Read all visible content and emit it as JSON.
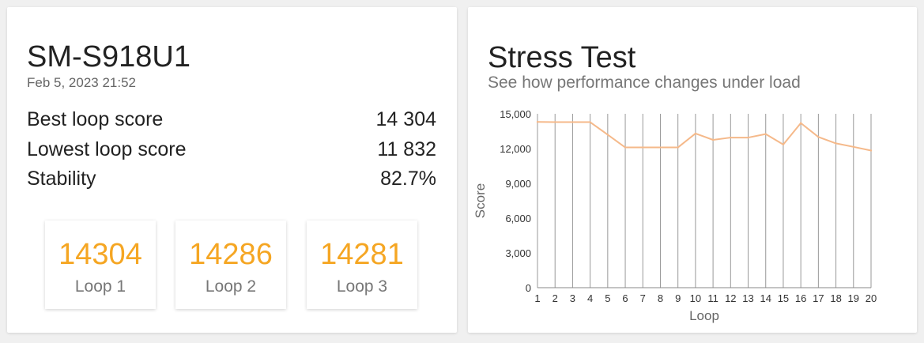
{
  "device": {
    "name": "SM-S918U1",
    "date": "Feb 5, 2023 21:52"
  },
  "stats": [
    {
      "label": "Best loop score",
      "value": "14 304"
    },
    {
      "label": "Lowest loop score",
      "value": "11 832"
    },
    {
      "label": "Stability",
      "value": "82.7%"
    }
  ],
  "loops": [
    {
      "score": "14304",
      "label": "Loop 1"
    },
    {
      "score": "14286",
      "label": "Loop 2"
    },
    {
      "score": "14281",
      "label": "Loop 3"
    }
  ],
  "stress": {
    "title": "Stress Test",
    "subtitle": "See how performance changes under load"
  },
  "colors": {
    "accent": "#f5a623",
    "line": "#f5b98a",
    "grid": "#999999"
  },
  "chart_data": {
    "type": "line",
    "xlabel": "Loop",
    "ylabel": "Score",
    "ylim": [
      0,
      15000
    ],
    "yticks": [
      0,
      3000,
      6000,
      9000,
      12000,
      15000
    ],
    "ytick_labels": [
      "0",
      "3,000",
      "6,000",
      "9,000",
      "12,000",
      "15,000"
    ],
    "categories": [
      "1",
      "2",
      "3",
      "4",
      "5",
      "6",
      "7",
      "8",
      "9",
      "10",
      "11",
      "12",
      "13",
      "14",
      "15",
      "16",
      "17",
      "18",
      "19",
      "20"
    ],
    "series": [
      {
        "name": "Score",
        "values": [
          14304,
          14286,
          14281,
          14280,
          13200,
          12100,
          12100,
          12100,
          12100,
          13300,
          12750,
          12950,
          12950,
          13250,
          12350,
          14200,
          13000,
          12450,
          12150,
          11832
        ]
      }
    ]
  }
}
